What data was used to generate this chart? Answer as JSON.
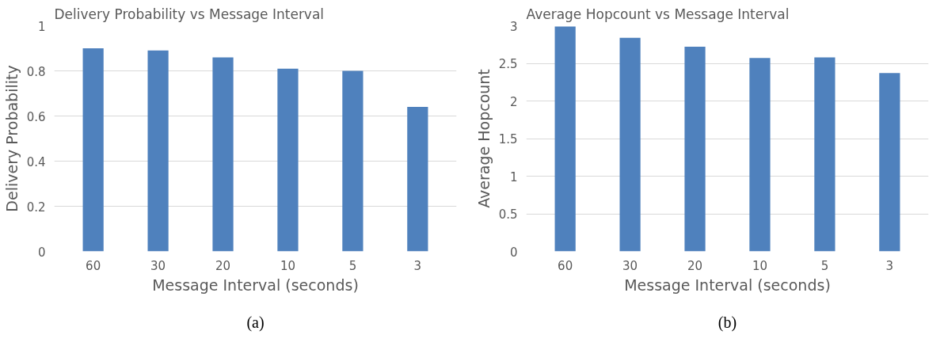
{
  "chart_data": [
    {
      "type": "bar",
      "title": "Delivery Probability vs Message Interval",
      "xlabel": "Message Interval (seconds)",
      "ylabel": "Delivery Probability",
      "categories": [
        "60",
        "30",
        "20",
        "10",
        "5",
        "3"
      ],
      "values": [
        0.9,
        0.89,
        0.86,
        0.81,
        0.8,
        0.64
      ],
      "color": "#4f81bd",
      "ylim": [
        0,
        1
      ],
      "yticks": [
        0,
        0.2,
        0.4,
        0.6,
        0.8,
        1
      ],
      "grid": "y",
      "annotations": [
        "(a)"
      ]
    },
    {
      "type": "bar",
      "title": "Average Hopcount vs Message Interval",
      "xlabel": "Message Interval (seconds)",
      "ylabel": "Average Hopcount",
      "categories": [
        "60",
        "30",
        "20",
        "10",
        "5",
        "3"
      ],
      "values": [
        2.99,
        2.84,
        2.72,
        2.57,
        2.58,
        2.37
      ],
      "color": "#4f81bd",
      "ylim": [
        0,
        3
      ],
      "yticks": [
        0,
        0.5,
        1,
        1.5,
        2,
        2.5,
        3
      ],
      "grid": "y",
      "annotations": [
        "(b)"
      ]
    }
  ]
}
